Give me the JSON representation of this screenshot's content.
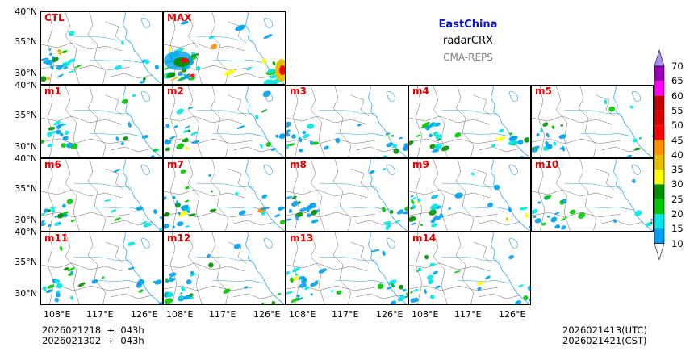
{
  "title": {
    "region": "EastChina",
    "variable": "radarCRX",
    "model": "CMA-REPS"
  },
  "axes": {
    "lat_labels": [
      "40°N",
      "35°N",
      "30°N"
    ],
    "lon_labels": [
      "108°E",
      "117°E",
      "126°E"
    ]
  },
  "panels": [
    {
      "row": 0,
      "col": 0,
      "label": "CTL",
      "intensity": 0.5
    },
    {
      "row": 0,
      "col": 1,
      "label": "MAX",
      "intensity": 1.0
    },
    {
      "row": 1,
      "col": 0,
      "label": "m1",
      "intensity": 0.4
    },
    {
      "row": 1,
      "col": 1,
      "label": "m2",
      "intensity": 0.45
    },
    {
      "row": 1,
      "col": 2,
      "label": "m3",
      "intensity": 0.4
    },
    {
      "row": 1,
      "col": 3,
      "label": "m4",
      "intensity": 0.55
    },
    {
      "row": 1,
      "col": 4,
      "label": "m5",
      "intensity": 0.35
    },
    {
      "row": 2,
      "col": 0,
      "label": "m6",
      "intensity": 0.45
    },
    {
      "row": 2,
      "col": 1,
      "label": "m7",
      "intensity": 0.6
    },
    {
      "row": 2,
      "col": 2,
      "label": "m8",
      "intensity": 0.45
    },
    {
      "row": 2,
      "col": 3,
      "label": "m9",
      "intensity": 0.55
    },
    {
      "row": 2,
      "col": 4,
      "label": "m10",
      "intensity": 0.35
    },
    {
      "row": 3,
      "col": 0,
      "label": "m11",
      "intensity": 0.4
    },
    {
      "row": 3,
      "col": 1,
      "label": "m12",
      "intensity": 0.45
    },
    {
      "row": 3,
      "col": 2,
      "label": "m13",
      "intensity": 0.6
    },
    {
      "row": 3,
      "col": 3,
      "label": "m14",
      "intensity": 0.4
    }
  ],
  "colorbar": {
    "levels": [
      "10",
      "15",
      "20",
      "25",
      "30",
      "35",
      "40",
      "45",
      "50",
      "55",
      "60",
      "65",
      "70"
    ],
    "colors": [
      "#00a0f0",
      "#00e6e6",
      "#00c800",
      "#009000",
      "#ffff00",
      "#e6c000",
      "#ff9000",
      "#ff0000",
      "#d70000",
      "#c00000",
      "#ff00f0",
      "#9600b4",
      "#ad90f0"
    ]
  },
  "footer": {
    "init_utc": "2026021218  +  043h",
    "init_cst": "2026021302  +  043h",
    "valid_utc": "2026021413(UTC)",
    "valid_cst": "2026021421(CST)"
  }
}
